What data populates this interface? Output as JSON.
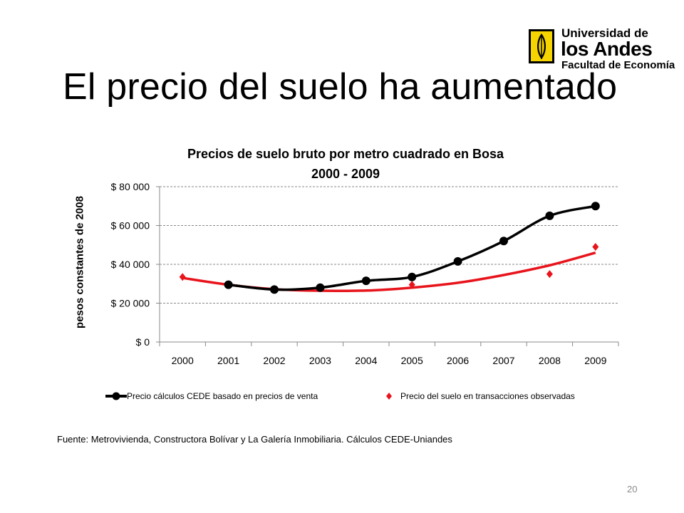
{
  "slide": {
    "title": "El precio del suelo ha aumentado",
    "source": "Fuente: Metrovivienda, Constructora Bolívar y La Galería Inmobiliaria.  Cálculos CEDE-Uniandes",
    "page_number": "20"
  },
  "logo": {
    "line1": "Universidad de",
    "line2": "los Andes",
    "line3": "Facultad de Economía",
    "colors": {
      "mark": "#f5d400",
      "text": "#000000"
    }
  },
  "chart_data": {
    "type": "line",
    "title_line1": "Precios de suelo bruto por metro cuadrado en Bosa",
    "title_line2": "2000 - 2009",
    "ylabel": "pesos constantes de 2008",
    "xlabel": "",
    "categories": [
      "2000",
      "2001",
      "2002",
      "2003",
      "2004",
      "2005",
      "2006",
      "2007",
      "2008",
      "2009"
    ],
    "ylim": [
      0,
      80000
    ],
    "yticks": [
      0,
      20000,
      40000,
      60000,
      80000
    ],
    "ytick_labels": [
      "$ 0",
      "$ 20 000",
      "$ 40 000",
      "$ 60 000",
      "$ 80 000"
    ],
    "grid": "horizontal dashed",
    "legend_position": "bottom",
    "series": [
      {
        "name": "Precio cálculos CEDE basado en precios de venta",
        "color": "#000000",
        "marker": "circle",
        "x": [
          "2001",
          "2002",
          "2003",
          "2004",
          "2005",
          "2006",
          "2007",
          "2008",
          "2009"
        ],
        "values": [
          29500,
          27000,
          28000,
          31500,
          33500,
          41500,
          52000,
          65000,
          70000
        ]
      },
      {
        "name": "Precio del suelo en transacciones observadas",
        "color": "#e8141c",
        "marker": "diamond",
        "x": [
          "2000",
          "2005",
          "2008",
          "2009"
        ],
        "values": [
          33500,
          29500,
          35000,
          49000
        ]
      }
    ],
    "trendline": {
      "color": "#e8141c",
      "x": [
        "2000",
        "2001",
        "2002",
        "2003",
        "2004",
        "2005",
        "2006",
        "2007",
        "2008",
        "2009"
      ],
      "values": [
        33000,
        29500,
        27200,
        26400,
        26500,
        28000,
        30500,
        34500,
        39500,
        46000
      ]
    }
  }
}
